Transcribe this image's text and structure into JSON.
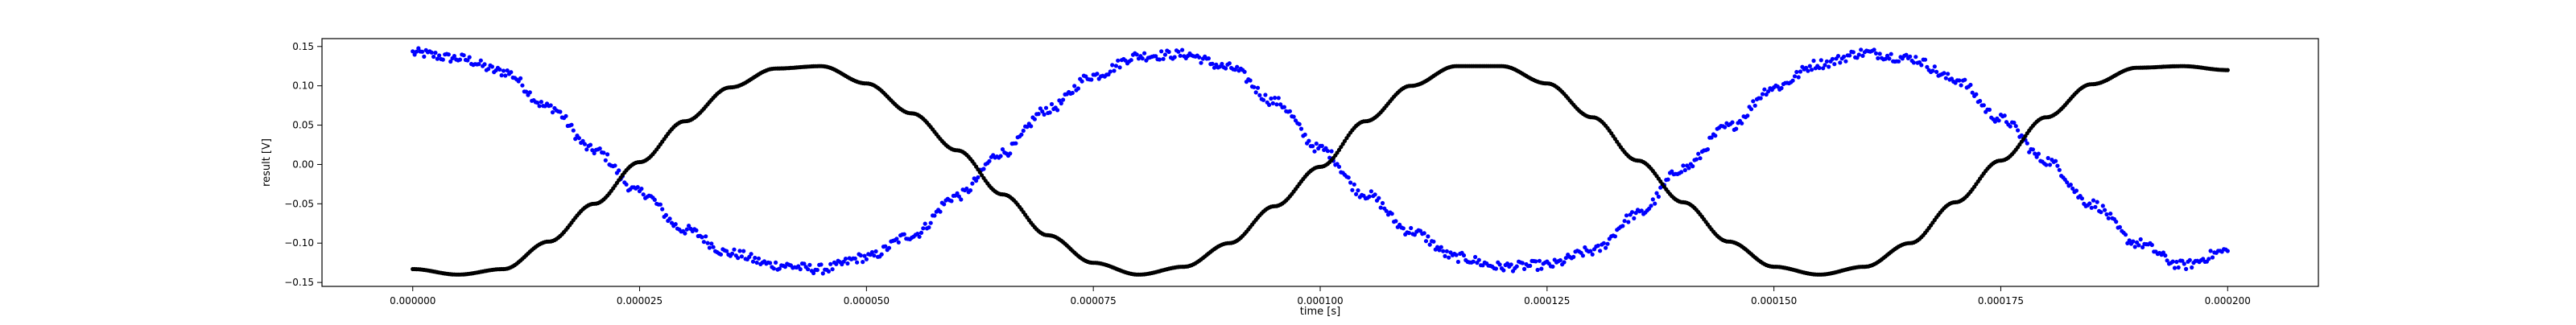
{
  "chart_data": {
    "type": "scatter",
    "title": "",
    "xlabel": "time [s]",
    "ylabel": "result [V]",
    "xlim": [
      -1e-05,
      0.00021
    ],
    "ylim": [
      -0.155,
      0.16
    ],
    "grid": false,
    "legend": "none",
    "x_ticks": [
      {
        "value": 0.0,
        "label": "0.000000"
      },
      {
        "value": 2.5e-05,
        "label": "0.000025"
      },
      {
        "value": 5e-05,
        "label": "0.000050"
      },
      {
        "value": 7.5e-05,
        "label": "0.000075"
      },
      {
        "value": 0.0001,
        "label": "0.000100"
      },
      {
        "value": 0.000125,
        "label": "0.000125"
      },
      {
        "value": 0.00015,
        "label": "0.000150"
      },
      {
        "value": 0.000175,
        "label": "0.000175"
      },
      {
        "value": 0.0002,
        "label": "0.000200"
      }
    ],
    "y_ticks": [
      {
        "value": 0.15,
        "label": "0.15"
      },
      {
        "value": 0.1,
        "label": "0.10"
      },
      {
        "value": 0.05,
        "label": "0.05"
      },
      {
        "value": 0.0,
        "label": "0.00"
      },
      {
        "value": -0.05,
        "label": "−0.05"
      },
      {
        "value": -0.1,
        "label": "−0.10"
      },
      {
        "value": -0.15,
        "label": "−0.15"
      }
    ],
    "series": [
      {
        "color": "#0000ff",
        "noisy": true,
        "x": [
          0,
          5e-06,
          1e-05,
          1.5e-05,
          2e-05,
          2.5e-05,
          3e-05,
          3.5e-05,
          4e-05,
          4.5e-05,
          5e-05,
          5.5e-05,
          6e-05,
          6.5e-05,
          7e-05,
          7.5e-05,
          8e-05,
          8.5e-05,
          9e-05,
          9.5e-05,
          0.0001,
          0.000105,
          0.00011,
          0.000115,
          0.00012,
          0.000125,
          0.00013,
          0.000135,
          0.00014,
          0.000145,
          0.00015,
          0.000155,
          0.00016,
          0.000165,
          0.00017,
          0.000175,
          0.00018,
          0.000185,
          0.00019,
          0.000195,
          0.0002
        ],
        "y": [
          0.142,
          0.135,
          0.118,
          0.073,
          0.018,
          -0.035,
          -0.083,
          -0.113,
          -0.128,
          -0.133,
          -0.118,
          -0.09,
          -0.04,
          0.015,
          0.07,
          0.113,
          0.138,
          0.14,
          0.123,
          0.08,
          0.02,
          -0.038,
          -0.085,
          -0.118,
          -0.13,
          -0.128,
          -0.11,
          -0.063,
          -0.005,
          0.048,
          0.098,
          0.128,
          0.142,
          0.135,
          0.108,
          0.058,
          0.005,
          -0.05,
          -0.1,
          -0.128,
          -0.11
        ]
      },
      {
        "color": "#000000",
        "noisy": false,
        "x": [
          0,
          5e-06,
          1e-05,
          1.5e-05,
          2e-05,
          2.5e-05,
          3e-05,
          3.5e-05,
          4e-05,
          4.5e-05,
          5e-05,
          5.5e-05,
          6e-05,
          6.5e-05,
          7e-05,
          7.5e-05,
          8e-05,
          8.5e-05,
          9e-05,
          9.5e-05,
          0.0001,
          0.000105,
          0.00011,
          0.000115,
          0.00012,
          0.000125,
          0.00013,
          0.000135,
          0.00014,
          0.000145,
          0.00015,
          0.000155,
          0.00016,
          0.000165,
          0.00017,
          0.000175,
          0.00018,
          0.000185,
          0.00019,
          0.000195,
          0.0002
        ],
        "y": [
          -0.133,
          -0.14,
          -0.133,
          -0.098,
          -0.05,
          0.003,
          0.055,
          0.098,
          0.122,
          0.125,
          0.103,
          0.065,
          0.018,
          -0.038,
          -0.09,
          -0.125,
          -0.14,
          -0.13,
          -0.1,
          -0.053,
          -0.003,
          0.055,
          0.1,
          0.125,
          0.125,
          0.103,
          0.06,
          0.005,
          -0.048,
          -0.098,
          -0.13,
          -0.14,
          -0.13,
          -0.1,
          -0.048,
          0.005,
          0.06,
          0.102,
          0.123,
          0.125,
          0.12
        ]
      }
    ]
  }
}
